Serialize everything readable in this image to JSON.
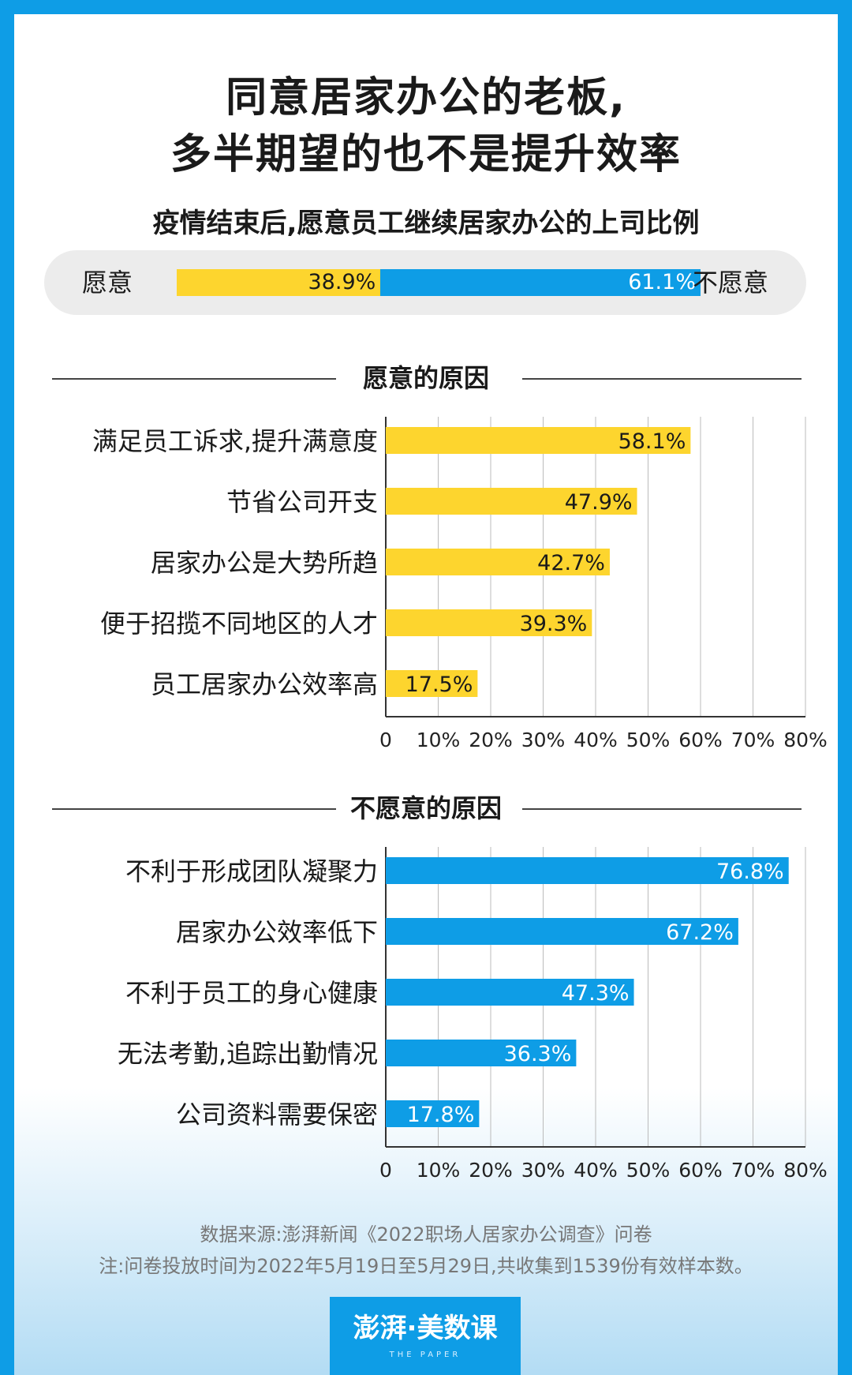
{
  "title": {
    "line1": "同意居家办公的老板,",
    "line2": "多半期望的也不是提升效率"
  },
  "subtitle": "疫情结束后,愿意员工继续居家办公的上司比例",
  "split": {
    "left_label": "愿意",
    "right_label": "不愿意",
    "left_value": 38.9,
    "right_value": 61.1,
    "left_text": "38.9%",
    "right_text": "61.1%"
  },
  "colors": {
    "yellow": "#fdd52e",
    "blue": "#0e9de6",
    "background": "#0e9de6",
    "grid": "#bbbbbb",
    "axis": "#333333"
  },
  "chart_data": [
    {
      "type": "bar",
      "orientation": "horizontal",
      "title": "愿意的原因",
      "categories": [
        "满足员工诉求,提升满意度",
        "节省公司开支",
        "居家办公是大势所趋",
        "便于招揽不同地区的人才",
        "员工居家办公效率高"
      ],
      "values": [
        58.1,
        47.9,
        42.7,
        39.3,
        17.5
      ],
      "value_labels": [
        "58.1%",
        "47.9%",
        "42.7%",
        "39.3%",
        "17.5%"
      ],
      "xlim": [
        0,
        80
      ],
      "ticks": [
        "0",
        "10%",
        "20%",
        "30%",
        "40%",
        "50%",
        "60%",
        "70%",
        "80%"
      ],
      "grid": true,
      "color": "#fdd52e",
      "label_color": "#1a1a1a"
    },
    {
      "type": "bar",
      "orientation": "horizontal",
      "title": "不愿意的原因",
      "categories": [
        "不利于形成团队凝聚力",
        "居家办公效率低下",
        "不利于员工的身心健康",
        "无法考勤,追踪出勤情况",
        "公司资料需要保密"
      ],
      "values": [
        76.8,
        67.2,
        47.3,
        36.3,
        17.8
      ],
      "value_labels": [
        "76.8%",
        "67.2%",
        "47.3%",
        "36.3%",
        "17.8%"
      ],
      "xlim": [
        0,
        80
      ],
      "ticks": [
        "0",
        "10%",
        "20%",
        "30%",
        "40%",
        "50%",
        "60%",
        "70%",
        "80%"
      ],
      "grid": true,
      "color": "#0e9de6",
      "label_color": "#ffffff"
    }
  ],
  "source": "数据来源:澎湃新闻《2022职场人居家办公调查》问卷",
  "note": "注:问卷投放时间为2022年5月19日至5月29日,共收集到1539份有效样本数。",
  "logo": {
    "main": "澎湃·美数课",
    "sub": "THE PAPER"
  }
}
